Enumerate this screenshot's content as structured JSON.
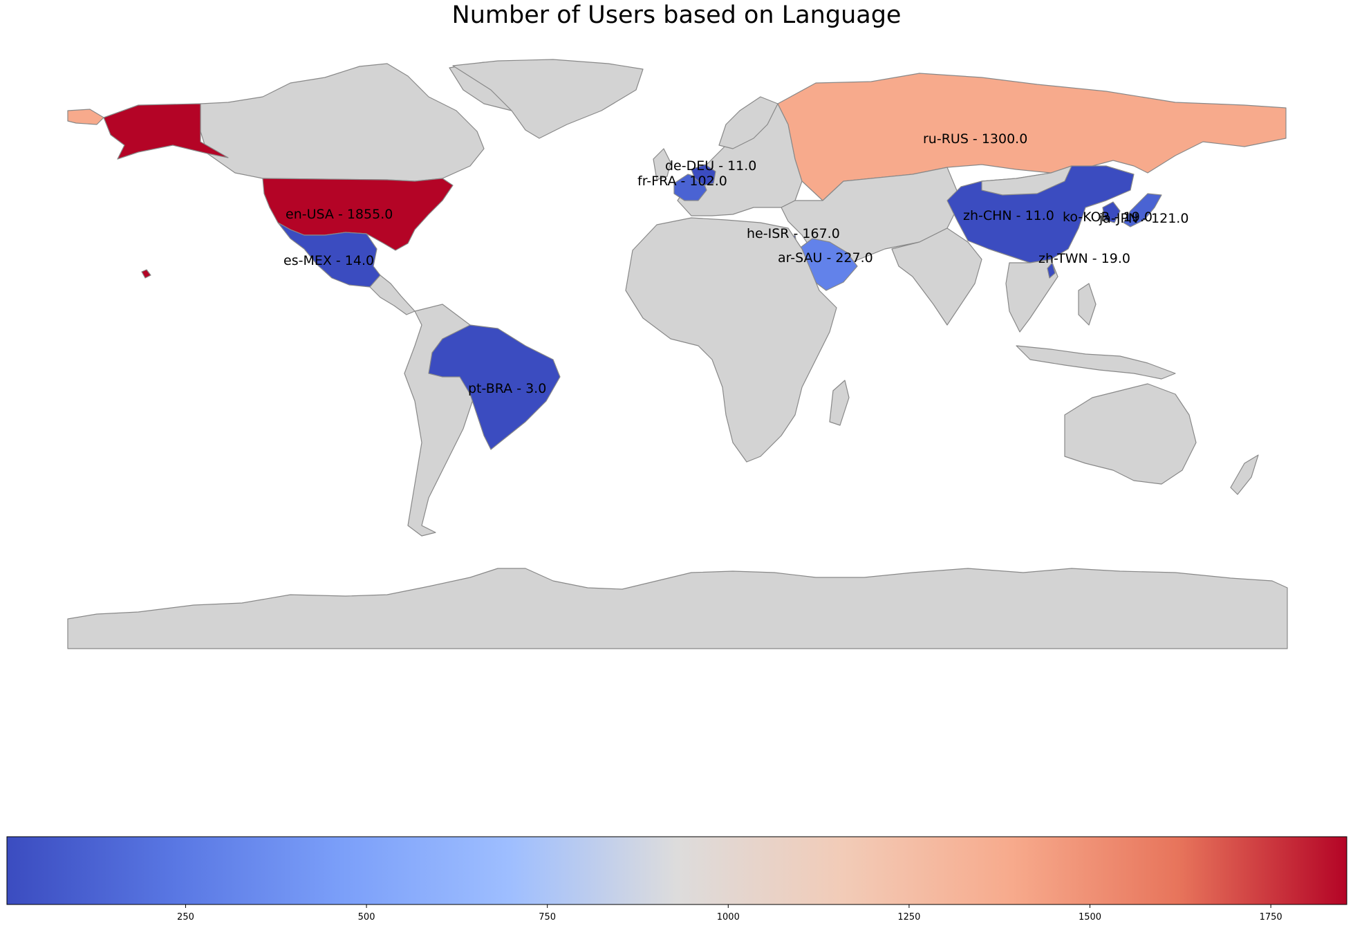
{
  "title": "Number of Users based on Language",
  "colors": {
    "land": "#d3d3d3",
    "border": "#888888",
    "en_usa": "#b40426",
    "ru_rus": "#f7aa8c",
    "ar_sau": "#6282ea",
    "blue_dark": "#3b4cc0",
    "blue_mid": "#4a63d3"
  },
  "regions": [
    {
      "code": "en-USA",
      "value": 1855.0,
      "label": "en-USA - 1855.0"
    },
    {
      "code": "ru-RUS",
      "value": 1300.0,
      "label": "ru-RUS - 1300.0"
    },
    {
      "code": "ar-SAU",
      "value": 227.0,
      "label": "ar-SAU - 227.0"
    },
    {
      "code": "he-ISR",
      "value": 167.0,
      "label": "he-ISR - 167.0"
    },
    {
      "code": "ja-JPN",
      "value": 121.0,
      "label": "ja-JPN - 121.0"
    },
    {
      "code": "fr-FRA",
      "value": 102.0,
      "label": "fr-FRA - 102.0"
    },
    {
      "code": "zh-TWN",
      "value": 19.0,
      "label": "zh-TWN - 19.0"
    },
    {
      "code": "ko-KOR",
      "value": 19.0,
      "label": "ko-KOR - 19.0"
    },
    {
      "code": "es-MEX",
      "value": 14.0,
      "label": "es-MEX - 14.0"
    },
    {
      "code": "de-DEU",
      "value": 11.0,
      "label": "de-DEU - 11.0"
    },
    {
      "code": "zh-CHN",
      "value": 11.0,
      "label": "zh-CHN - 11.0"
    },
    {
      "code": "pt-BRA",
      "value": 3.0,
      "label": "pt-BRA - 3.0"
    }
  ],
  "colorbar": {
    "colormap": "coolwarm",
    "min": 3.0,
    "max": 1855.0,
    "ticks": [
      250,
      500,
      750,
      1000,
      1250,
      1500,
      1750
    ],
    "tick_labels": [
      "250",
      "500",
      "750",
      "1000",
      "1250",
      "1500",
      "1750"
    ],
    "orientation": "horizontal",
    "placement": "bottom"
  }
}
